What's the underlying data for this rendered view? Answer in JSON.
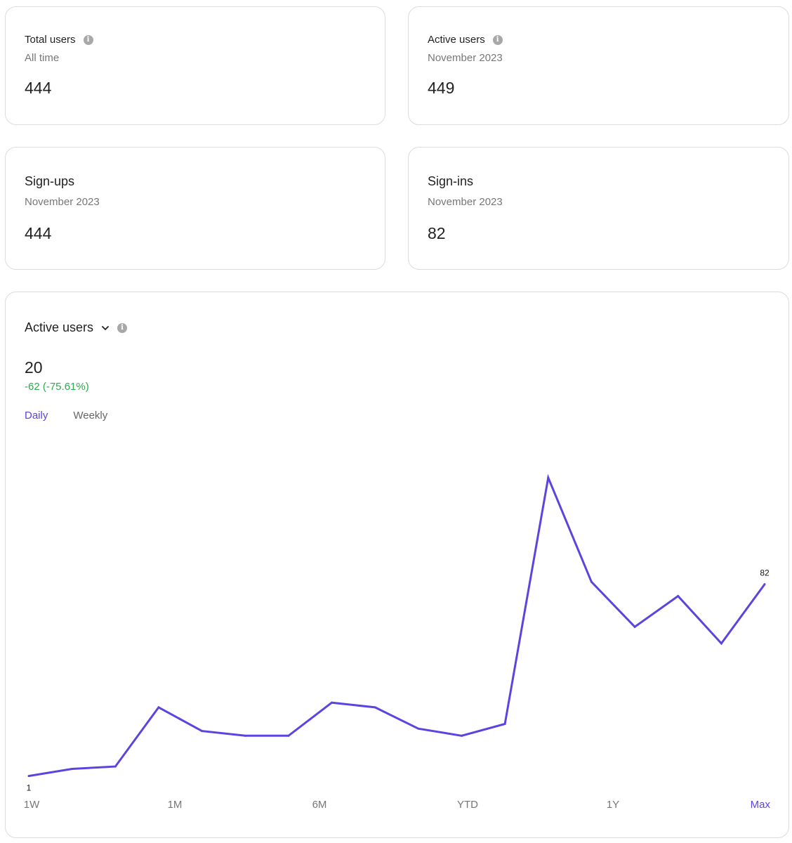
{
  "cards": {
    "total_users": {
      "title": "Total users",
      "subtitle": "All time",
      "value": "444"
    },
    "active_users": {
      "title": "Active users",
      "subtitle": "November 2023",
      "value": "449"
    },
    "sign_ups": {
      "title": "Sign-ups",
      "subtitle": "November 2023",
      "value": "444"
    },
    "sign_ins": {
      "title": "Sign-ins",
      "subtitle": "November 2023",
      "value": "82"
    }
  },
  "chart_panel": {
    "title": "Active users",
    "value": "20",
    "delta": "-62 (-75.61%)",
    "delta_color": "#2fa84f",
    "accent_color": "#5b45e0",
    "toggles": [
      {
        "label": "Daily",
        "active": true
      },
      {
        "label": "Weekly",
        "active": false
      }
    ],
    "ranges": [
      {
        "label": "1W",
        "active": false
      },
      {
        "label": "1M",
        "active": false
      },
      {
        "label": "6M",
        "active": false
      },
      {
        "label": "YTD",
        "active": false
      },
      {
        "label": "1Y",
        "active": false
      },
      {
        "label": "Max",
        "active": true
      }
    ],
    "icons": [
      "info-icon",
      "chevron-down-icon"
    ]
  },
  "chart_data": {
    "type": "line",
    "series": [
      {
        "values": [
          1,
          4,
          5,
          30,
          20,
          18,
          18,
          32,
          30,
          21,
          18,
          23,
          127,
          83,
          64,
          77,
          57,
          82
        ]
      }
    ],
    "point_labels": [
      {
        "index": 0,
        "text": "1"
      },
      {
        "index": 17,
        "text": "82"
      }
    ],
    "ylim": [
      0,
      127
    ],
    "grid": false,
    "color": "#5b45e0"
  }
}
